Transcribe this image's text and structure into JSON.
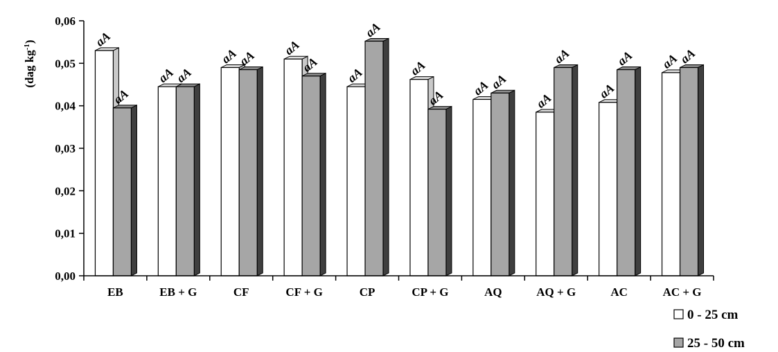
{
  "chart_data": {
    "type": "bar",
    "title": "",
    "xlabel": "",
    "ylabel": "(dag kg-1)",
    "ylabel_parts": {
      "main": "(dag kg",
      "sup": "-1",
      "close": ")"
    },
    "ylim": [
      0,
      0.06
    ],
    "yticks": [
      "0,00",
      "0,01",
      "0,02",
      "0,03",
      "0,04",
      "0,05",
      "0,06"
    ],
    "categories": [
      "EB",
      "EB + G",
      "CF",
      "CF + G",
      "CP",
      "CP + G",
      "AQ",
      "AQ + G",
      "AC",
      "AC + G"
    ],
    "series": [
      {
        "name": "0 - 25 cm",
        "color": "#ffffff",
        "values": [
          0.053,
          0.0445,
          0.049,
          0.051,
          0.0445,
          0.0462,
          0.0415,
          0.0385,
          0.0408,
          0.0478
        ],
        "labels": [
          "aA",
          "aA",
          "aA",
          "aA",
          "aA",
          "aA",
          "aA",
          "aA",
          "aA",
          "aA"
        ]
      },
      {
        "name": "25 - 50 cm",
        "color": "#a6a6a6",
        "values": [
          0.0395,
          0.0445,
          0.0485,
          0.047,
          0.0552,
          0.0392,
          0.043,
          0.049,
          0.0485,
          0.049
        ],
        "labels": [
          "aA",
          "aA",
          "aA",
          "aA",
          "aA",
          "aA",
          "aA",
          "aA",
          "aA",
          "aA"
        ]
      }
    ],
    "legend": "bottom-right",
    "grid": false
  }
}
